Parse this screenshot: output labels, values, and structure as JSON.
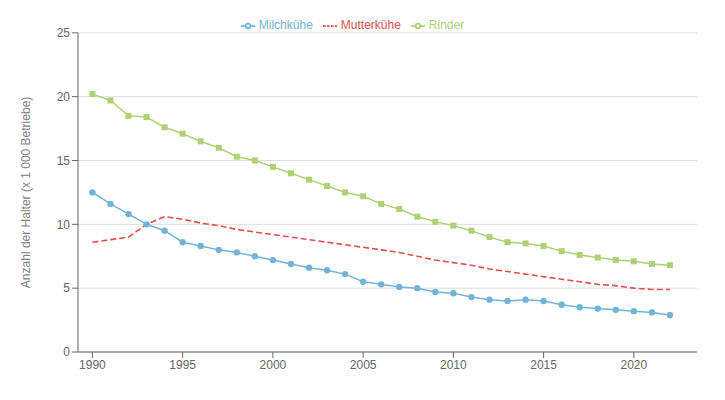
{
  "chart_data": {
    "type": "line",
    "ylabel": "Anzahl der Halter (x 1 000 Betriebe)",
    "x": [
      1990,
      1991,
      1992,
      1993,
      1994,
      1995,
      1996,
      1997,
      1998,
      1999,
      2000,
      2001,
      2002,
      2003,
      2004,
      2005,
      2006,
      2007,
      2008,
      2009,
      2010,
      2011,
      2012,
      2013,
      2014,
      2015,
      2016,
      2017,
      2018,
      2019,
      2020,
      2021,
      2022
    ],
    "series": [
      {
        "name": "Rinder",
        "color": "#aed175",
        "marker": "square",
        "line_style": "solid",
        "values": [
          20.2,
          19.7,
          18.5,
          18.4,
          17.6,
          17.1,
          16.5,
          16.0,
          15.3,
          15.0,
          14.5,
          14.0,
          13.5,
          13.0,
          12.5,
          12.2,
          11.6,
          11.2,
          10.6,
          10.2,
          9.9,
          9.5,
          9.0,
          8.6,
          8.5,
          8.3,
          7.9,
          7.6,
          7.4,
          7.2,
          7.1,
          6.9,
          6.8
        ]
      },
      {
        "name": "Milchkühe",
        "color": "#74b3d8",
        "marker": "circle",
        "line_style": "solid",
        "values": [
          12.5,
          11.6,
          10.8,
          10.0,
          9.5,
          8.6,
          8.3,
          8.0,
          7.8,
          7.5,
          7.2,
          6.9,
          6.6,
          6.4,
          6.1,
          5.5,
          5.3,
          5.1,
          5.0,
          4.7,
          4.6,
          4.3,
          4.1,
          4.0,
          4.1,
          4.0,
          3.7,
          3.5,
          3.4,
          3.3,
          3.2,
          3.1,
          2.9
        ]
      },
      {
        "name": "Mutterkühe",
        "color": "#e05050",
        "marker": "none",
        "line_style": "dashed",
        "values": [
          8.6,
          8.8,
          9.0,
          10.0,
          10.6,
          10.4,
          10.1,
          9.9,
          9.6,
          9.4,
          9.2,
          9.0,
          8.8,
          8.6,
          8.4,
          8.2,
          8.0,
          7.8,
          7.5,
          7.2,
          7.0,
          6.8,
          6.5,
          6.3,
          6.1,
          5.9,
          5.7,
          5.5,
          5.3,
          5.2,
          5.0,
          4.9,
          4.9
        ]
      }
    ],
    "xlim": [
      1989.2,
      2023.5
    ],
    "xticks": [
      1990,
      1995,
      2000,
      2005,
      2010,
      2015,
      2020
    ],
    "ylim": [
      0,
      25
    ],
    "yticks": [
      0,
      5,
      10,
      15,
      20,
      25
    ],
    "grid": true,
    "legend": "top"
  }
}
